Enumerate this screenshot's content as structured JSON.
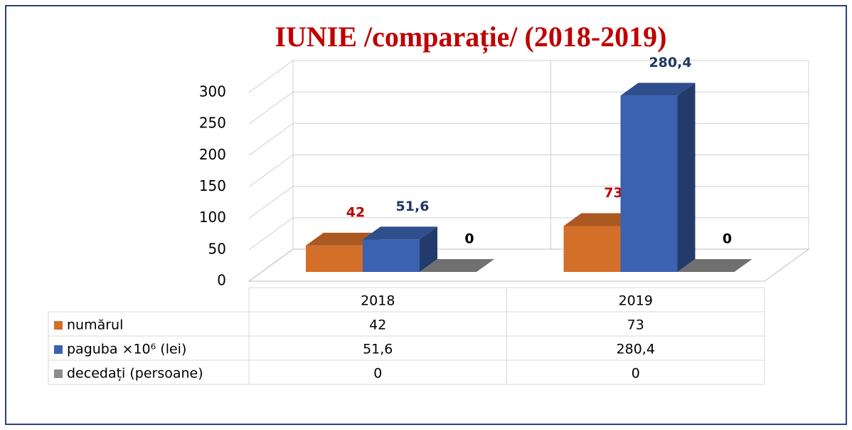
{
  "chart_data": {
    "type": "bar3d",
    "title": "IUNIE /comparație/ (2018-2019)",
    "categories": [
      "2018",
      "2019"
    ],
    "series": [
      {
        "name": "numărul",
        "color": "#d46f2a",
        "values": [
          42,
          73
        ]
      },
      {
        "name": "paguba ×10⁶ (lei)",
        "color": "#3a62b0",
        "values": [
          51.6,
          280.4
        ],
        "value_labels": [
          "51,6",
          "280,4"
        ]
      },
      {
        "name": "decedați (persoane)",
        "color": "#8c8c8c",
        "values": [
          0,
          0
        ]
      }
    ],
    "ylim": [
      0,
      300
    ],
    "yticks": [
      0,
      50,
      100,
      150,
      200,
      250,
      300
    ],
    "grid": true
  }
}
